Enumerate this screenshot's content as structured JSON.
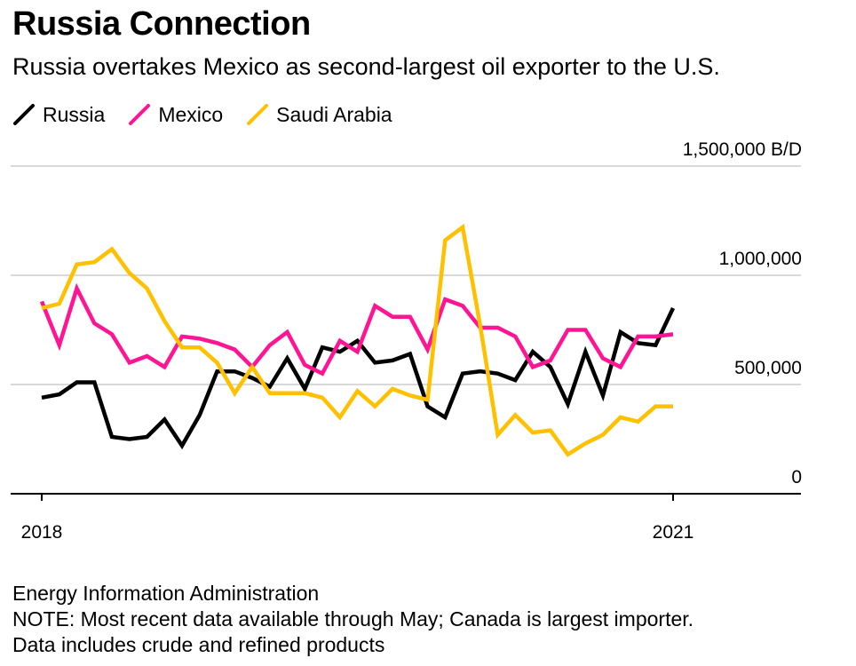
{
  "header": {
    "title": "Russia Connection",
    "subtitle": "Russia overtakes Mexico as second-largest oil exporter to the U.S."
  },
  "footer": {
    "source": "Energy Information Administration",
    "note": "NOTE: Most recent data available through May; Canada is largest importer.",
    "note2": "Data includes crude and refined products"
  },
  "chart_data": {
    "type": "line",
    "ylim": [
      0,
      1500000
    ],
    "unit_label": "1,500,000 B/D",
    "y_ticks": [
      {
        "value": 0,
        "label": "0"
      },
      {
        "value": 500000,
        "label": "500,000"
      },
      {
        "value": 1000000,
        "label": "1,000,000"
      },
      {
        "value": 1500000,
        "label": "1,500,000 B/D"
      }
    ],
    "x_ticks": [
      "2018",
      "2021"
    ],
    "grid": true,
    "legend_position": "top-left",
    "x": [
      "2018-01",
      "2018-02",
      "2018-03",
      "2018-04",
      "2018-05",
      "2018-06",
      "2018-07",
      "2018-08",
      "2018-09",
      "2018-10",
      "2018-11",
      "2018-12",
      "2019-01",
      "2019-02",
      "2019-03",
      "2019-04",
      "2019-05",
      "2019-06",
      "2019-07",
      "2019-08",
      "2019-09",
      "2019-10",
      "2019-11",
      "2019-12",
      "2020-01",
      "2020-02",
      "2020-03",
      "2020-04",
      "2020-05",
      "2020-06",
      "2020-07",
      "2020-08",
      "2020-09",
      "2020-10",
      "2020-11",
      "2020-12",
      "2021-01"
    ],
    "series": [
      {
        "name": "Russia",
        "color": "#000000",
        "values": [
          440000,
          455000,
          510000,
          510000,
          260000,
          250000,
          260000,
          340000,
          220000,
          360000,
          560000,
          560000,
          530000,
          490000,
          620000,
          480000,
          670000,
          650000,
          700000,
          600000,
          610000,
          640000,
          400000,
          350000,
          550000,
          560000,
          550000,
          520000,
          650000,
          580000,
          410000,
          650000,
          450000,
          740000,
          690000,
          680000,
          850000
        ]
      },
      {
        "name": "Mexico",
        "color": "#ff1493",
        "values": [
          880000,
          680000,
          940000,
          780000,
          730000,
          600000,
          630000,
          580000,
          720000,
          710000,
          690000,
          660000,
          580000,
          680000,
          740000,
          590000,
          550000,
          700000,
          650000,
          860000,
          810000,
          810000,
          660000,
          890000,
          860000,
          760000,
          760000,
          720000,
          580000,
          610000,
          750000,
          750000,
          620000,
          580000,
          720000,
          720000,
          730000
        ]
      },
      {
        "name": "Saudi Arabia",
        "color": "#ffc000",
        "values": [
          850000,
          870000,
          1050000,
          1060000,
          1120000,
          1010000,
          940000,
          790000,
          670000,
          670000,
          600000,
          460000,
          580000,
          460000,
          460000,
          460000,
          440000,
          350000,
          470000,
          400000,
          480000,
          450000,
          430000,
          1160000,
          1220000,
          770000,
          270000,
          360000,
          280000,
          290000,
          180000,
          230000,
          270000,
          350000,
          330000,
          400000,
          400000
        ]
      }
    ]
  }
}
